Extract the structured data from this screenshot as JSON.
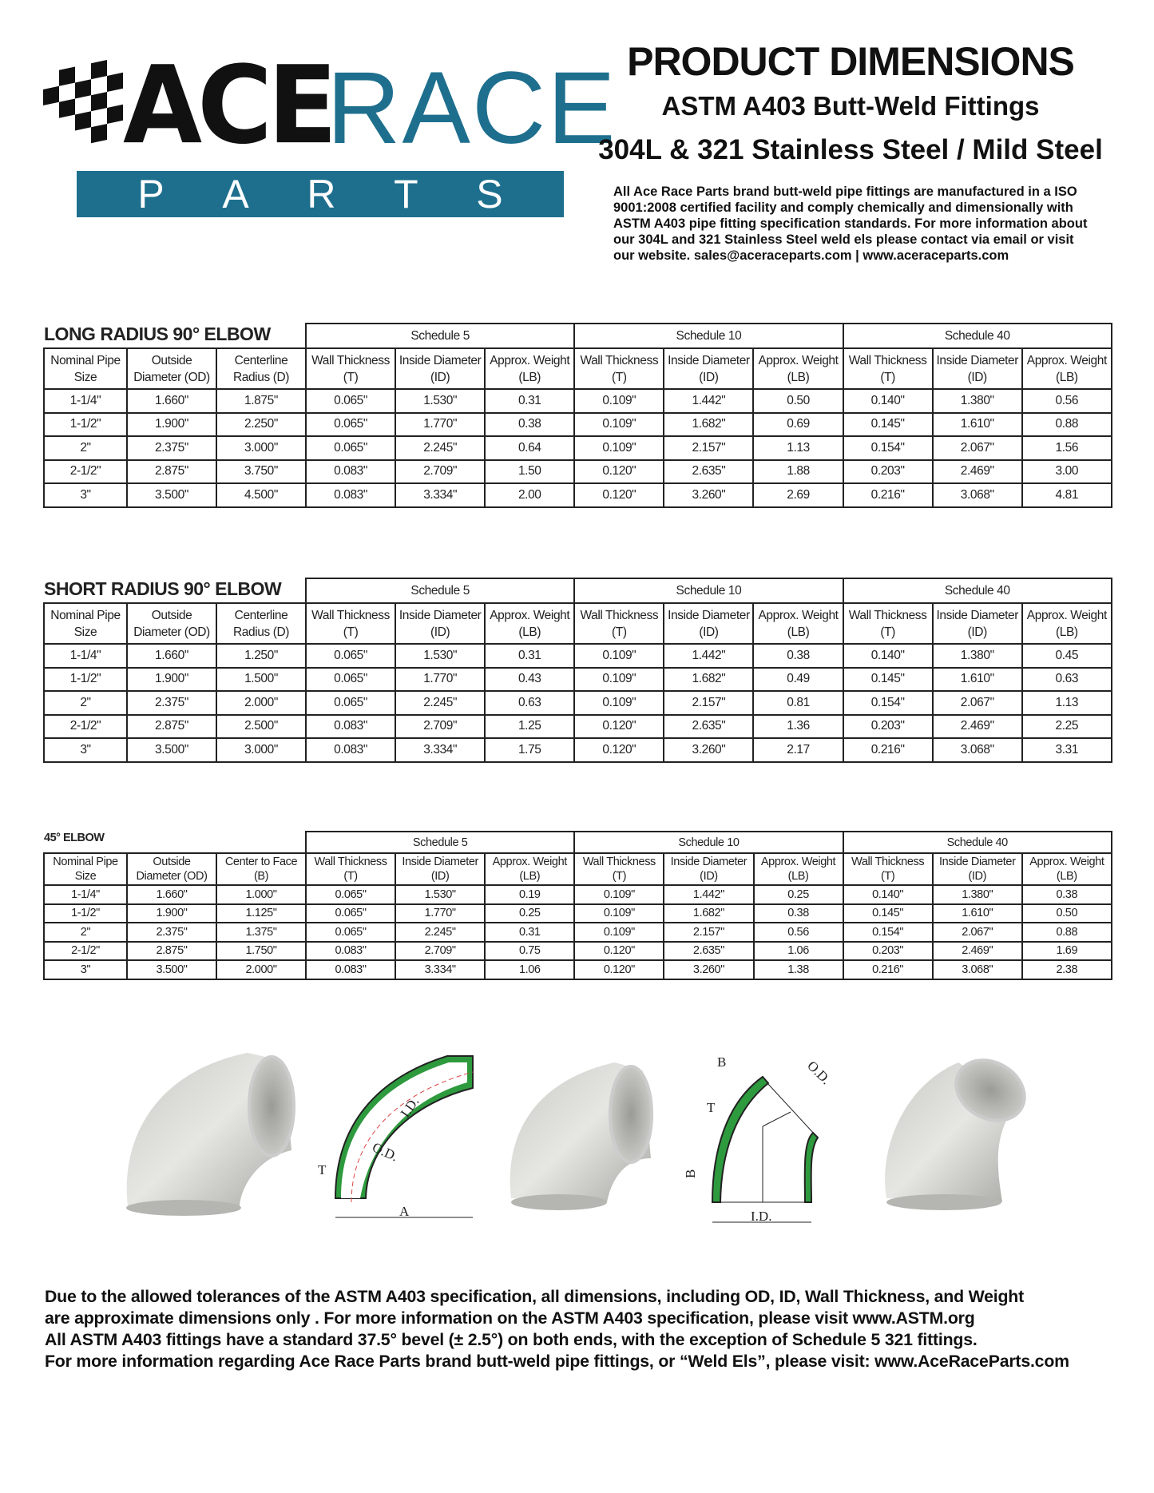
{
  "logo": {
    "line1a": "ACE",
    "line1b": "RACE",
    "line2": [
      "P",
      "A",
      "R",
      "T",
      "S"
    ],
    "colors": {
      "teal": "#1e6f8e",
      "black": "#111111"
    }
  },
  "header": {
    "title": "PRODUCT DIMENSIONS",
    "subtitle1": "ASTM A403 Butt-Weld Fittings",
    "subtitle2": "304L & 321 Stainless Steel / Mild Steel",
    "intro": "All Ace Race Parts brand butt-weld pipe fittings are manufactured in a ISO 9001:2008 certified facility and comply chemically and dimensionally with ASTM A403 pipe fitting specification standards. For more information about our 304L and 321 Stainless Steel weld els please contact via email or visit our website. sales@aceraceparts.com | www.aceraceparts.com"
  },
  "schedules": [
    "Schedule 5",
    "Schedule 10",
    "Schedule 40"
  ],
  "sub_headers": [
    "Wall Thickness\n(T)",
    "Inside Diameter\n(ID)",
    "Approx. Weight\n(LB)"
  ],
  "tables": [
    {
      "title": "LONG RADIUS 90° ELBOW",
      "cols": [
        "Nominal Pipe\nSize",
        "Outside\nDiameter (OD)",
        "Centerline\nRadius (D)"
      ],
      "rows": [
        [
          "1-1/4\"",
          "1.660\"",
          "1.875\"",
          "0.065\"",
          "1.530\"",
          "0.31",
          "0.109\"",
          "1.442\"",
          "0.50",
          "0.140\"",
          "1.380\"",
          "0.56"
        ],
        [
          "1-1/2\"",
          "1.900\"",
          "2.250\"",
          "0.065\"",
          "1.770\"",
          "0.38",
          "0.109\"",
          "1.682\"",
          "0.69",
          "0.145\"",
          "1.610\"",
          "0.88"
        ],
        [
          "2\"",
          "2.375\"",
          "3.000\"",
          "0.065\"",
          "2.245\"",
          "0.64",
          "0.109\"",
          "2.157\"",
          "1.13",
          "0.154\"",
          "2.067\"",
          "1.56"
        ],
        [
          "2-1/2\"",
          "2.875\"",
          "3.750\"",
          "0.083\"",
          "2.709\"",
          "1.50",
          "0.120\"",
          "2.635\"",
          "1.88",
          "0.203\"",
          "2.469\"",
          "3.00"
        ],
        [
          "3\"",
          "3.500\"",
          "4.500\"",
          "0.083\"",
          "3.334\"",
          "2.00",
          "0.120\"",
          "3.260\"",
          "2.69",
          "0.216\"",
          "3.068\"",
          "4.81"
        ]
      ]
    },
    {
      "title": "SHORT RADIUS 90° ELBOW",
      "cols": [
        "Nominal Pipe\nSize",
        "Outside\nDiameter (OD)",
        "Centerline\nRadius (D)"
      ],
      "rows": [
        [
          "1-1/4\"",
          "1.660\"",
          "1.250\"",
          "0.065\"",
          "1.530\"",
          "0.31",
          "0.109\"",
          "1.442\"",
          "0.38",
          "0.140\"",
          "1.380\"",
          "0.45"
        ],
        [
          "1-1/2\"",
          "1.900\"",
          "1.500\"",
          "0.065\"",
          "1.770\"",
          "0.43",
          "0.109\"",
          "1.682\"",
          "0.49",
          "0.145\"",
          "1.610\"",
          "0.63"
        ],
        [
          "2\"",
          "2.375\"",
          "2.000\"",
          "0.065\"",
          "2.245\"",
          "0.63",
          "0.109\"",
          "2.157\"",
          "0.81",
          "0.154\"",
          "2.067\"",
          "1.13"
        ],
        [
          "2-1/2\"",
          "2.875\"",
          "2.500\"",
          "0.083\"",
          "2.709\"",
          "1.25",
          "0.120\"",
          "2.635\"",
          "1.36",
          "0.203\"",
          "2.469\"",
          "2.25"
        ],
        [
          "3\"",
          "3.500\"",
          "3.000\"",
          "0.083\"",
          "3.334\"",
          "1.75",
          "0.120\"",
          "3.260\"",
          "2.17",
          "0.216\"",
          "3.068\"",
          "3.31"
        ]
      ]
    },
    {
      "title": "45° ELBOW",
      "cols": [
        "Nominal Pipe\nSize",
        "Outside\nDiameter (OD)",
        "Center to Face\n(B)"
      ],
      "rows": [
        [
          "1-1/4\"",
          "1.660\"",
          "1.000\"",
          "0.065\"",
          "1.530\"",
          "0.19",
          "0.109\"",
          "1.442\"",
          "0.25",
          "0.140\"",
          "1.380\"",
          "0.38"
        ],
        [
          "1-1/2\"",
          "1.900\"",
          "1.125\"",
          "0.065\"",
          "1.770\"",
          "0.25",
          "0.109\"",
          "1.682\"",
          "0.38",
          "0.145\"",
          "1.610\"",
          "0.50"
        ],
        [
          "2\"",
          "2.375\"",
          "1.375\"",
          "0.065\"",
          "2.245\"",
          "0.31",
          "0.109\"",
          "2.157\"",
          "0.56",
          "0.154\"",
          "2.067\"",
          "0.88"
        ],
        [
          "2-1/2\"",
          "2.875\"",
          "1.750\"",
          "0.083\"",
          "2.709\"",
          "0.75",
          "0.120\"",
          "2.635\"",
          "1.06",
          "0.203\"",
          "2.469\"",
          "1.69"
        ],
        [
          "3\"",
          "3.500\"",
          "2.000\"",
          "0.083\"",
          "3.334\"",
          "1.06",
          "0.120\"",
          "3.260\"",
          "1.38",
          "0.216\"",
          "3.068\"",
          "2.38"
        ]
      ]
    }
  ],
  "diagrams": {
    "d90": {
      "t": "T",
      "od": "O.D.",
      "id": "I.D.",
      "a": "A"
    },
    "d45": {
      "b1": "B",
      "b2": "B",
      "t": "T",
      "od": "O.D.",
      "id": "I.D."
    },
    "fill_color": "#2e9a3e"
  },
  "footer": [
    "Due to the allowed tolerances of the ASTM A403 specification, all dimensions, including OD, ID, Wall Thickness, and Weight",
    "are approximate dimensions only . For more information on the ASTM A403 specification, please visit www.ASTM.org",
    "All ASTM A403 fittings have a standard 37.5° bevel (± 2.5°) on both ends, with the exception of Schedule 5 321 fittings.",
    "For more information regarding Ace Race Parts brand butt-weld pipe fittings, or “Weld Els”, please visit: www.AceRaceParts.com"
  ]
}
